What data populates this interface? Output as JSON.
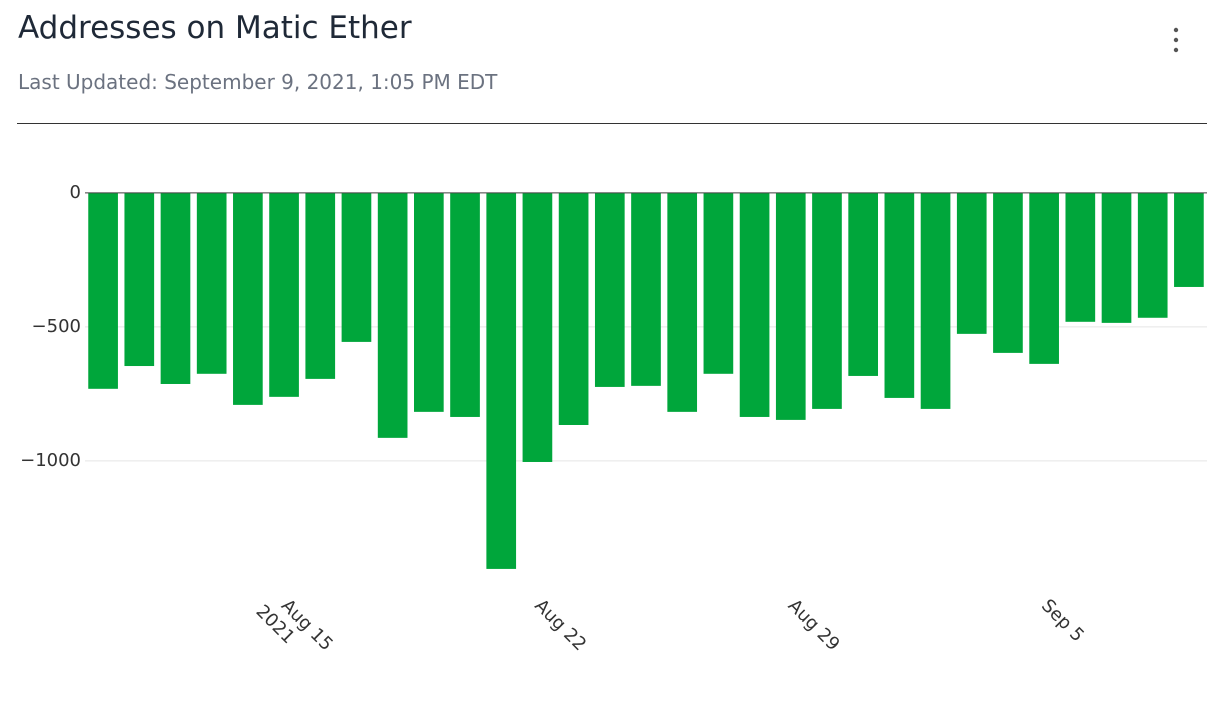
{
  "chart_data": {
    "type": "bar",
    "title": "Addresses on Matic Ether",
    "subtitle": "Last Updated: September 9, 2021, 1:05 PM EDT",
    "x": [
      "2021-08-10",
      "2021-08-11",
      "2021-08-12",
      "2021-08-13",
      "2021-08-14",
      "2021-08-15",
      "2021-08-16",
      "2021-08-17",
      "2021-08-18",
      "2021-08-19",
      "2021-08-20",
      "2021-08-21",
      "2021-08-22",
      "2021-08-23",
      "2021-08-24",
      "2021-08-25",
      "2021-08-26",
      "2021-08-27",
      "2021-08-28",
      "2021-08-29",
      "2021-08-30",
      "2021-08-31",
      "2021-09-01",
      "2021-09-02",
      "2021-09-03",
      "2021-09-04",
      "2021-09-05",
      "2021-09-06",
      "2021-09-07",
      "2021-09-08",
      "2021-09-09"
    ],
    "values": [
      -731,
      -646,
      -713,
      -675,
      -791,
      -761,
      -694,
      -556,
      -914,
      -817,
      -836,
      -1403,
      -1004,
      -866,
      -724,
      -720,
      -817,
      -675,
      -836,
      -847,
      -806,
      -683,
      -765,
      -806,
      -526,
      -597,
      -638,
      -481,
      -485,
      -466,
      -351
    ],
    "color": "#00a63b",
    "ylim": [
      -1463,
      160
    ],
    "yticks": [
      {
        "value": 0,
        "label": "0"
      },
      {
        "value": -500,
        "label": "−500"
      },
      {
        "value": -1000,
        "label": "−1000"
      }
    ],
    "xticks": [
      {
        "value": "2021-08-15",
        "label": "Aug 15\n2021"
      },
      {
        "value": "2021-08-22",
        "label": "Aug 22"
      },
      {
        "value": "2021-08-29",
        "label": "Aug 29"
      },
      {
        "value": "2021-09-05",
        "label": "Sep 5"
      }
    ],
    "grid": true
  }
}
